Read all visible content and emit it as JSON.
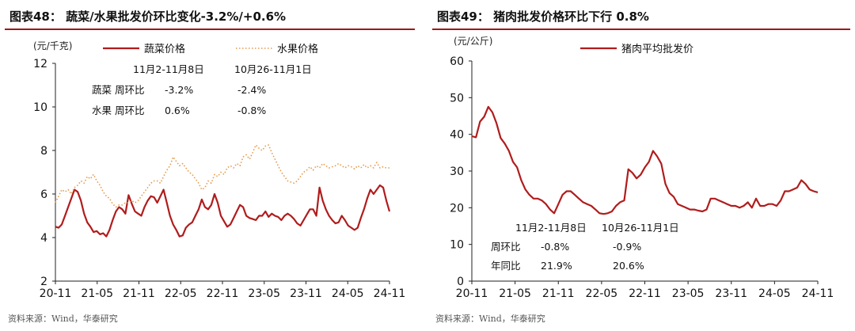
{
  "left": {
    "title": "图表48： 蔬菜/水果批发价环比变化-3.2%/+0.6%",
    "source": "资料来源：Wind，华泰研究",
    "unit": "(元/千克)",
    "chart_data": {
      "type": "line",
      "ylim": [
        2,
        12
      ],
      "yticks": [
        "2",
        "4",
        "6",
        "8",
        "10",
        "12"
      ],
      "xticks": [
        "20-11",
        "21-05",
        "21-11",
        "22-05",
        "22-11",
        "23-05",
        "23-11",
        "24-05",
        "24-11"
      ],
      "legend_position": "top",
      "series": [
        {
          "name": "蔬菜价格",
          "color": "#b01c1c",
          "style": "solid",
          "values": [
            4.5,
            4.45,
            4.6,
            5.0,
            5.4,
            5.8,
            6.2,
            6.1,
            5.7,
            5.1,
            4.7,
            4.5,
            4.25,
            4.3,
            4.15,
            4.2,
            4.05,
            4.35,
            4.8,
            5.2,
            5.4,
            5.3,
            5.1,
            5.95,
            5.55,
            5.2,
            5.1,
            5.0,
            5.4,
            5.7,
            5.9,
            5.85,
            5.6,
            5.9,
            6.2,
            5.6,
            5.0,
            4.6,
            4.35,
            4.05,
            4.1,
            4.45,
            4.6,
            4.7,
            5.0,
            5.3,
            5.75,
            5.4,
            5.3,
            5.5,
            6.0,
            5.6,
            5.0,
            4.75,
            4.5,
            4.6,
            4.9,
            5.2,
            5.5,
            5.4,
            5.0,
            4.9,
            4.85,
            4.8,
            5.0,
            5.0,
            5.2,
            4.95,
            5.1,
            5.0,
            4.95,
            4.8,
            5.0,
            5.1,
            5.0,
            4.85,
            4.65,
            4.55,
            4.8,
            5.05,
            5.3,
            5.3,
            5.0,
            6.3,
            5.7,
            5.3,
            5.0,
            4.8,
            4.65,
            4.7,
            5.0,
            4.8,
            4.55,
            4.45,
            4.35,
            4.45,
            4.9,
            5.3,
            5.8,
            6.2,
            6.0,
            6.2,
            6.4,
            6.3,
            5.7,
            5.2
          ]
        },
        {
          "name": "水果价格",
          "color": "#e49a4c",
          "style": "dotted",
          "values": [
            5.6,
            5.9,
            6.2,
            6.1,
            6.2,
            6.0,
            6.3,
            6.4,
            6.6,
            6.5,
            6.8,
            6.7,
            6.9,
            6.6,
            6.4,
            6.1,
            5.9,
            5.8,
            5.55,
            5.4,
            5.5,
            5.5,
            5.6,
            5.6,
            5.7,
            5.6,
            5.7,
            5.9,
            6.1,
            6.3,
            6.5,
            6.6,
            6.6,
            6.5,
            6.8,
            7.1,
            7.3,
            7.7,
            7.5,
            7.3,
            7.4,
            7.2,
            7.0,
            6.9,
            6.7,
            6.5,
            6.2,
            6.3,
            6.6,
            6.5,
            6.9,
            6.8,
            7.0,
            6.9,
            7.2,
            7.3,
            7.2,
            7.4,
            7.3,
            7.7,
            7.8,
            7.6,
            7.9,
            8.25,
            8.1,
            8.0,
            8.2,
            8.25,
            7.9,
            7.6,
            7.3,
            7.0,
            6.8,
            6.6,
            6.55,
            6.5,
            6.6,
            6.8,
            7.0,
            7.1,
            7.25,
            7.1,
            7.3,
            7.2,
            7.4,
            7.3,
            7.2,
            7.25,
            7.3,
            7.4,
            7.3,
            7.2,
            7.3,
            7.25,
            7.15,
            7.3,
            7.2,
            7.35,
            7.2,
            7.3,
            7.2,
            7.45,
            7.2,
            7.25,
            7.2,
            7.2
          ]
        }
      ],
      "annotations": {
        "col1_header": "11月2-11月8日",
        "col2_header": "10月26-11月1日",
        "rows": [
          {
            "label": "蔬菜  周环比",
            "v1": "-3.2%",
            "v2": "-2.4%"
          },
          {
            "label": "水果  周环比",
            "v1": "0.6%",
            "v2": "-0.8%"
          }
        ]
      }
    }
  },
  "right": {
    "title": "图表49： 猪肉批发价格环比下行 0.8%",
    "source": "资料来源：Wind，华泰研究",
    "unit": "(元/公斤)",
    "chart_data": {
      "type": "line",
      "ylim": [
        0,
        60
      ],
      "yticks": [
        "0",
        "10",
        "20",
        "30",
        "40",
        "50",
        "60"
      ],
      "xticks": [
        "20-11",
        "21-05",
        "21-11",
        "22-05",
        "22-11",
        "23-05",
        "23-11",
        "24-05",
        "24-11"
      ],
      "legend_position": "top",
      "series": [
        {
          "name": "猪肉平均批发价",
          "color": "#b01c1c",
          "style": "solid",
          "values": [
            39.5,
            39.2,
            43.5,
            44.8,
            47.5,
            46.0,
            43.0,
            39.0,
            37.5,
            35.5,
            32.5,
            31.0,
            27.5,
            25.0,
            23.5,
            22.5,
            22.5,
            22.0,
            21.0,
            19.5,
            18.5,
            21.0,
            23.5,
            24.5,
            24.5,
            23.5,
            22.5,
            21.5,
            21.0,
            20.5,
            19.5,
            18.5,
            18.3,
            18.5,
            19.0,
            20.5,
            21.5,
            22.0,
            30.5,
            29.5,
            28.0,
            29.0,
            31.0,
            32.5,
            35.5,
            34.0,
            32.0,
            26.5,
            24.0,
            23.0,
            21.0,
            20.5,
            20.0,
            19.5,
            19.5,
            19.2,
            19.0,
            19.5,
            22.5,
            22.5,
            22.0,
            21.5,
            21.0,
            20.5,
            20.5,
            20.0,
            20.5,
            21.5,
            20.0,
            22.5,
            20.5,
            20.5,
            21.0,
            21.0,
            20.5,
            22.0,
            24.5,
            24.5,
            25.0,
            25.5,
            27.5,
            26.5,
            25.0,
            24.5,
            24.2
          ]
        }
      ],
      "annotations": {
        "col1_header": "11月2-11月8日",
        "col2_header": "10月26-11月1日",
        "rows": [
          {
            "label": "周环比",
            "v1": "-0.8%",
            "v2": "-0.9%"
          },
          {
            "label": "年同比",
            "v1": "21.9%",
            "v2": "20.6%"
          }
        ]
      }
    }
  }
}
